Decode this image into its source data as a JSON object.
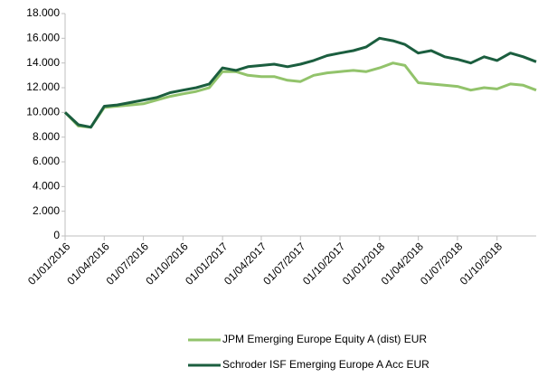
{
  "chart_data": {
    "type": "line",
    "x": [
      "01/01/2016",
      "01/02/2016",
      "01/03/2016",
      "01/04/2016",
      "01/05/2016",
      "01/06/2016",
      "01/07/2016",
      "01/08/2016",
      "01/09/2016",
      "01/10/2016",
      "01/11/2016",
      "01/12/2016",
      "01/01/2017",
      "01/02/2017",
      "01/03/2017",
      "01/04/2017",
      "01/05/2017",
      "01/06/2017",
      "01/07/2017",
      "01/08/2017",
      "01/09/2017",
      "01/10/2017",
      "01/11/2017",
      "01/12/2017",
      "01/01/2018",
      "01/02/2018",
      "01/03/2018",
      "01/04/2018",
      "01/05/2018",
      "01/06/2018",
      "01/07/2018",
      "01/08/2018",
      "01/09/2018",
      "01/10/2018",
      "01/11/2018",
      "01/12/2018",
      "31/12/2018"
    ],
    "series": [
      {
        "name": "JPM Emerging Europe Equity A (dist) EUR",
        "color": "#92c36b",
        "values": [
          10000,
          8900,
          8800,
          10400,
          10500,
          10600,
          10700,
          11000,
          11300,
          11500,
          11700,
          12000,
          13300,
          13300,
          13000,
          12900,
          12900,
          12600,
          12500,
          13000,
          13200,
          13300,
          13400,
          13300,
          13600,
          14000,
          13800,
          12400,
          12300,
          12200,
          12100,
          11800,
          12000,
          11900,
          12300,
          12200,
          11800
        ]
      },
      {
        "name": "Schroder ISF Emerging Europe A Acc EUR",
        "color": "#1b5e3f",
        "values": [
          10000,
          9000,
          8800,
          10500,
          10600,
          10800,
          11000,
          11200,
          11600,
          11800,
          12000,
          12300,
          13600,
          13400,
          13700,
          13800,
          13900,
          13700,
          13900,
          14200,
          14600,
          14800,
          15000,
          15300,
          16000,
          15800,
          15500,
          14800,
          15000,
          14500,
          14300,
          14000,
          14500,
          14200,
          14800,
          14500,
          14100
        ]
      }
    ],
    "xlim": [
      "01/01/2016",
      "31/12/2018"
    ],
    "xticks": [
      "01/01/2016",
      "01/04/2016",
      "01/07/2016",
      "01/10/2016",
      "01/01/2017",
      "01/04/2017",
      "01/07/2017",
      "01/10/2017",
      "01/01/2018",
      "01/04/2018",
      "01/07/2018",
      "01/10/2018"
    ],
    "ylim": [
      0,
      18000
    ],
    "yticks": [
      {
        "value": 0,
        "label": "0"
      },
      {
        "value": 2000,
        "label": "2.000"
      },
      {
        "value": 4000,
        "label": "4.000"
      },
      {
        "value": 6000,
        "label": "6.000"
      },
      {
        "value": 8000,
        "label": "8.000"
      },
      {
        "value": 10000,
        "label": "10.000"
      },
      {
        "value": 12000,
        "label": "12.000"
      },
      {
        "value": 14000,
        "label": "14.000"
      },
      {
        "value": 16000,
        "label": "16.000"
      },
      {
        "value": 18000,
        "label": "18.000"
      }
    ],
    "legend": "bottom"
  }
}
